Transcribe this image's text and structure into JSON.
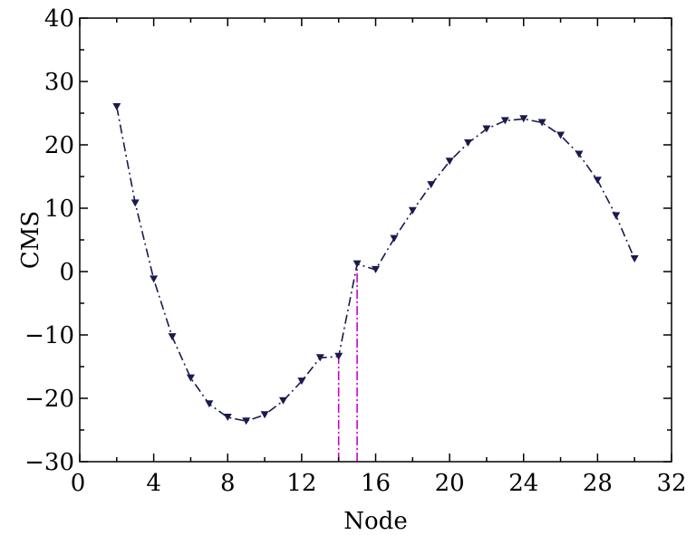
{
  "chart_data": {
    "type": "line",
    "title": "",
    "xlabel": "Node",
    "ylabel": "CMS",
    "xlim": [
      0,
      32
    ],
    "ylim": [
      -30,
      40
    ],
    "x_ticks": [
      0,
      4,
      8,
      12,
      16,
      20,
      24,
      28,
      32
    ],
    "y_ticks": [
      40,
      30,
      20,
      10,
      0,
      -10,
      -20,
      -30
    ],
    "grid": false,
    "legend": "none",
    "series": [
      {
        "color": "#1a1a4e",
        "line_style": "dash-dot",
        "marker": "triangle-down",
        "x": [
          2,
          3,
          4,
          5,
          6,
          7,
          8,
          9,
          10,
          11,
          12,
          13,
          14,
          15,
          16,
          17,
          18,
          19,
          20,
          21,
          22,
          23,
          24,
          25,
          26,
          27,
          28,
          29,
          30
        ],
        "y": [
          26.0,
          10.8,
          -1.2,
          -10.3,
          -16.8,
          -20.9,
          -23.0,
          -23.6,
          -22.6,
          -20.4,
          -17.3,
          -13.6,
          -13.4,
          1.2,
          0.3,
          5.2,
          9.6,
          13.7,
          17.4,
          20.3,
          22.5,
          23.8,
          24.1,
          23.5,
          21.5,
          18.5,
          14.4,
          8.8,
          2.0
        ]
      }
    ],
    "reference_lines": [
      {
        "color": "#cc00cc",
        "x": 14,
        "y_from": -30,
        "y_to": -13.4
      },
      {
        "color": "#cc00cc",
        "x": 15,
        "y_from": -30,
        "y_to": 1.2
      }
    ]
  }
}
